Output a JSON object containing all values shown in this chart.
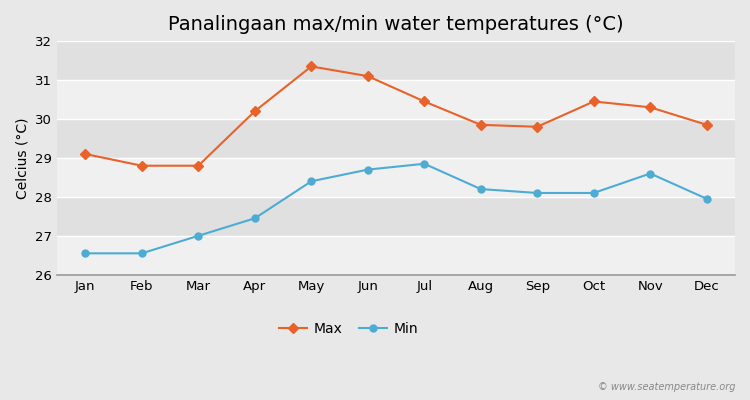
{
  "title": "Panalingaan max/min water temperatures (°C)",
  "ylabel": "Celcius (°C)",
  "months": [
    "Jan",
    "Feb",
    "Mar",
    "Apr",
    "May",
    "Jun",
    "Jul",
    "Aug",
    "Sep",
    "Oct",
    "Nov",
    "Dec"
  ],
  "max_temps": [
    29.1,
    28.8,
    28.8,
    30.2,
    31.35,
    31.1,
    30.45,
    29.85,
    29.8,
    30.45,
    30.3,
    29.85
  ],
  "min_temps": [
    26.55,
    26.55,
    27.0,
    27.45,
    28.4,
    28.7,
    28.85,
    28.2,
    28.1,
    28.1,
    28.6,
    27.95
  ],
  "max_color": "#e8622a",
  "min_color": "#4dacd4",
  "fig_bg_color": "#e8e8e8",
  "band_colors": [
    "#f0f0f0",
    "#e0e0e0"
  ],
  "ylim": [
    26,
    32
  ],
  "yticks": [
    26,
    27,
    28,
    29,
    30,
    31,
    32
  ],
  "watermark": "© www.seatemperature.org",
  "title_fontsize": 14,
  "label_fontsize": 10,
  "tick_fontsize": 9.5,
  "legend_labels": [
    "Max",
    "Min"
  ]
}
